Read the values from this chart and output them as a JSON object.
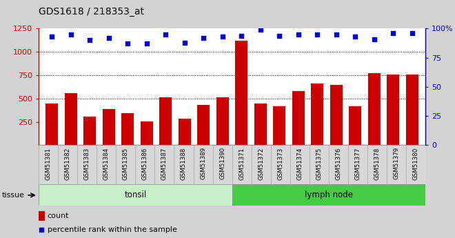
{
  "title": "GDS1618 / 218353_at",
  "categories": [
    "GSM51381",
    "GSM51382",
    "GSM51383",
    "GSM51384",
    "GSM51385",
    "GSM51386",
    "GSM51387",
    "GSM51388",
    "GSM51389",
    "GSM51390",
    "GSM51371",
    "GSM51372",
    "GSM51373",
    "GSM51374",
    "GSM51375",
    "GSM51376",
    "GSM51377",
    "GSM51378",
    "GSM51379",
    "GSM51380"
  ],
  "counts": [
    450,
    555,
    305,
    385,
    340,
    255,
    510,
    285,
    430,
    510,
    1120,
    450,
    420,
    580,
    660,
    650,
    415,
    770,
    760,
    755
  ],
  "percentiles": [
    93,
    95,
    90,
    92,
    87,
    87,
    95,
    88,
    92,
    93,
    94,
    99,
    94,
    95,
    95,
    95,
    93,
    91,
    96,
    96
  ],
  "bar_color": "#cc0000",
  "dot_color": "#0000cc",
  "ylim_left": [
    0,
    1250
  ],
  "ylim_right": [
    0,
    100
  ],
  "yticks_left": [
    250,
    500,
    750,
    1000,
    1250
  ],
  "yticks_right": [
    0,
    25,
    50,
    75,
    100
  ],
  "grid_values": [
    500,
    750,
    1000
  ],
  "tonsil_color": "#c8f0c8",
  "lymph_color": "#44cc44",
  "legend_items": [
    {
      "label": "count",
      "color": "#cc0000"
    },
    {
      "label": "percentile rank within the sample",
      "color": "#0000cc"
    }
  ],
  "tissue_label": "tissue",
  "background_color": "#d3d3d3"
}
